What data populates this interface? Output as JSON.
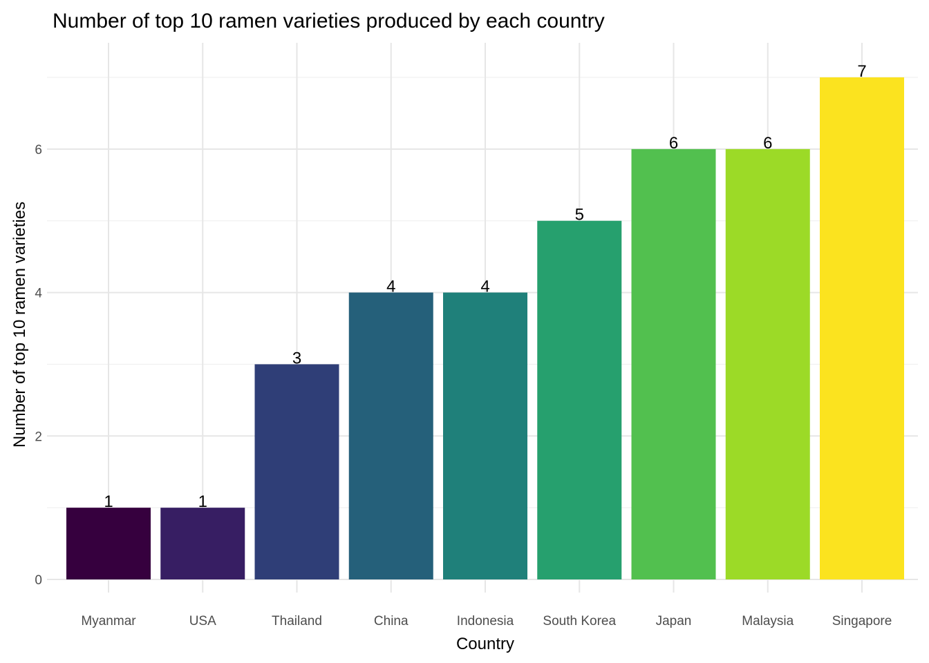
{
  "chart_data": {
    "type": "bar",
    "title": "Number of top 10 ramen varieties produced by each country",
    "xlabel": "Country",
    "ylabel": "Number of top 10 ramen varieties",
    "categories": [
      "Myanmar",
      "USA",
      "Thailand",
      "China",
      "Indonesia",
      "South Korea",
      "Japan",
      "Malaysia",
      "Singapore"
    ],
    "values": [
      1,
      1,
      3,
      4,
      4,
      5,
      6,
      6,
      7
    ],
    "colors": [
      "#36003E",
      "#371E63",
      "#2F3E77",
      "#25607A",
      "#1F807A",
      "#26A06E",
      "#52C04F",
      "#9CDA27",
      "#FBE31F"
    ],
    "yticks": [
      0,
      2,
      4,
      6
    ],
    "ylim": [
      0,
      7
    ],
    "grid": true,
    "legend": "none"
  }
}
